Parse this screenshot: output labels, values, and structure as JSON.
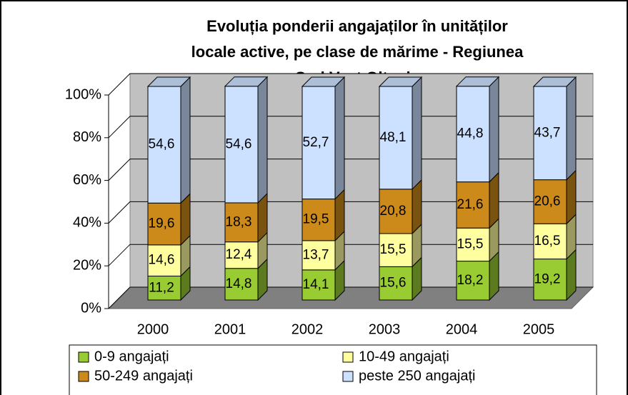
{
  "chart_data": {
    "type": "bar",
    "title": [
      "Evoluția ponderii angajaților în unităților",
      "locale active, pe clase de mărime - Regiunea",
      "Sud Vest Oltenia"
    ],
    "stacked": true,
    "categories": [
      "2000",
      "2001",
      "2002",
      "2003",
      "2004",
      "2005"
    ],
    "series": [
      {
        "name": "0-9 angajați",
        "color": "#99cc33",
        "values": [
          11.2,
          14.8,
          14.1,
          15.6,
          18.2,
          19.2
        ],
        "value_labels": [
          "11,2",
          "14,8",
          "14,1",
          "15,6",
          "18,2",
          "19,2"
        ]
      },
      {
        "name": "10-49 angajați",
        "color": "#ffffa0",
        "values": [
          14.6,
          12.4,
          13.7,
          15.5,
          15.5,
          16.5
        ],
        "value_labels": [
          "14,6",
          "12,4",
          "13,7",
          "15,5",
          "15,5",
          "16,5"
        ]
      },
      {
        "name": "50-249 angajați",
        "color": "#cc8a1a",
        "values": [
          19.6,
          18.3,
          19.5,
          20.8,
          21.6,
          20.6
        ],
        "value_labels": [
          "19,6",
          "18,3",
          "19,5",
          "20,8",
          "21,6",
          "20,6"
        ]
      },
      {
        "name": "peste 250 angajați",
        "color": "#cce0ff",
        "values": [
          54.6,
          54.6,
          52.7,
          48.1,
          44.8,
          43.7
        ],
        "value_labels": [
          "54,6",
          "54,6",
          "52,7",
          "48,1",
          "44,8",
          "43,7"
        ]
      }
    ],
    "ylim": [
      0,
      100
    ],
    "yticks": [
      {
        "value": 0,
        "label": "0%"
      },
      {
        "value": 20,
        "label": "20%"
      },
      {
        "value": 40,
        "label": "40%"
      },
      {
        "value": 60,
        "label": "60%"
      },
      {
        "value": 80,
        "label": "80%"
      },
      {
        "value": 100,
        "label": "100%"
      }
    ],
    "grid": true,
    "legend": "bottom"
  }
}
